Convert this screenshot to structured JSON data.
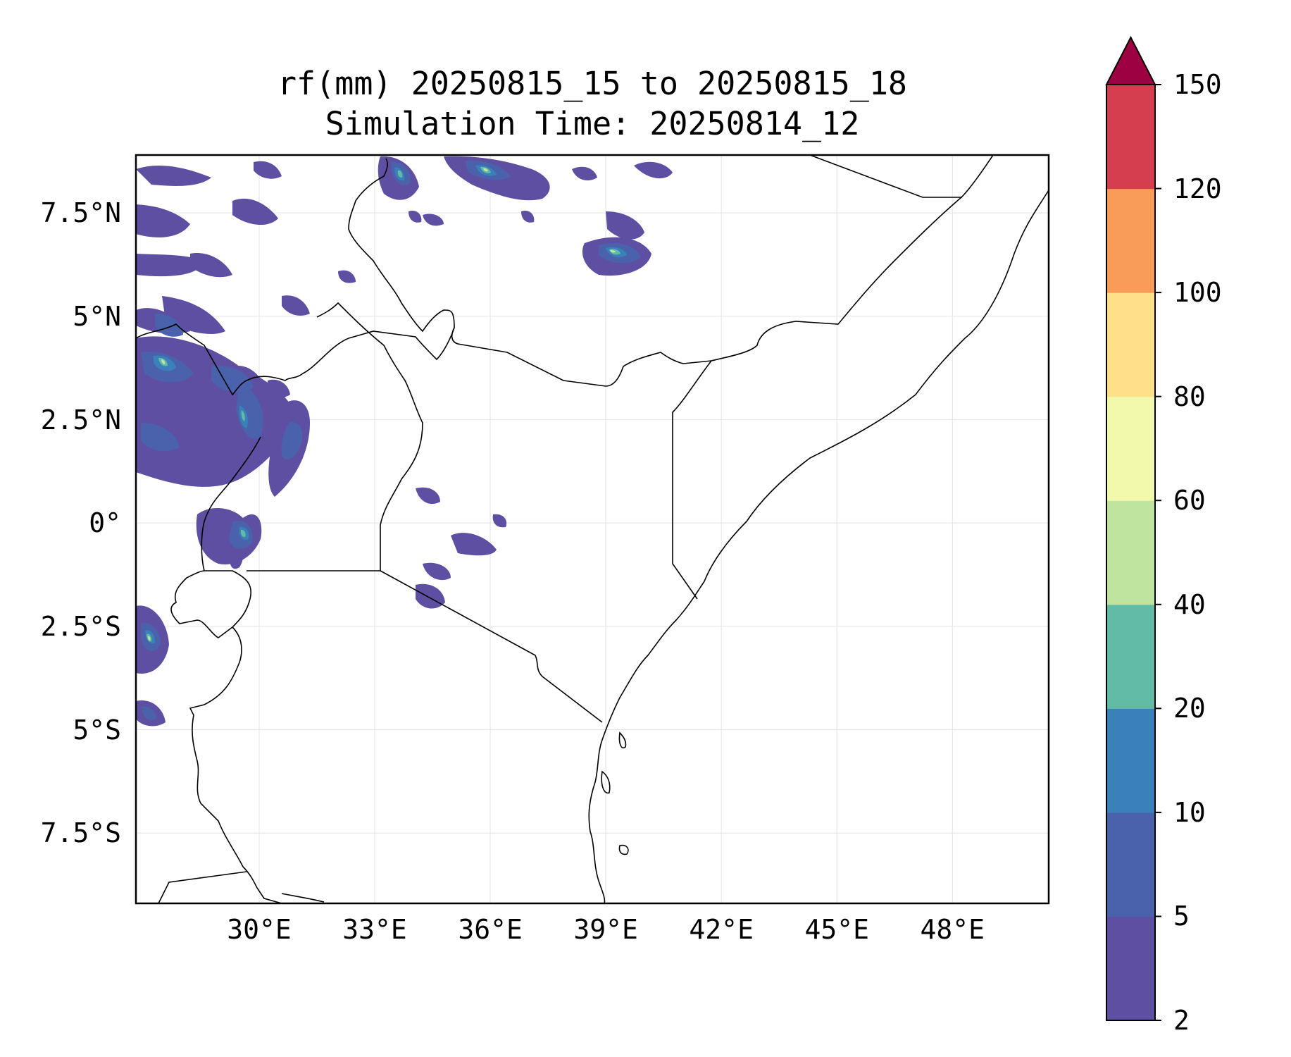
{
  "title": {
    "line1": "rf(mm) 20250815_15 to 20250815_18",
    "line2": "Simulation Time: 20250814_12"
  },
  "map": {
    "lon_range": [
      26.8,
      50.5
    ],
    "lat_range": [
      -9.2,
      8.9
    ],
    "lat_ticks": [
      {
        "value": 7.5,
        "label": "7.5°N"
      },
      {
        "value": 5,
        "label": "5°N"
      },
      {
        "value": 2.5,
        "label": "2.5°N"
      },
      {
        "value": 0,
        "label": "0°"
      },
      {
        "value": -2.5,
        "label": "2.5°S"
      },
      {
        "value": -5,
        "label": "5°S"
      },
      {
        "value": -7.5,
        "label": "7.5°S"
      }
    ],
    "lon_ticks": [
      {
        "value": 30,
        "label": "30°E"
      },
      {
        "value": 33,
        "label": "33°E"
      },
      {
        "value": 36,
        "label": "36°E"
      },
      {
        "value": 39,
        "label": "39°E"
      },
      {
        "value": 42,
        "label": "42°E"
      },
      {
        "value": 45,
        "label": "45°E"
      },
      {
        "value": 48,
        "label": "48°E"
      }
    ],
    "grid": true
  },
  "colorbar": {
    "extend": "max",
    "levels": [
      {
        "label": "2",
        "color": "#5e4fa2"
      },
      {
        "label": "5",
        "color": "#4a62ac"
      },
      {
        "label": "10",
        "color": "#3a80b9"
      },
      {
        "label": "20",
        "color": "#62bba7"
      },
      {
        "label": "40",
        "color": "#bee4a0"
      },
      {
        "label": "60",
        "color": "#f2f8ac"
      },
      {
        "label": "80",
        "color": "#fee08b"
      },
      {
        "label": "100",
        "color": "#f99c5a"
      },
      {
        "label": "120",
        "color": "#d53e4f"
      },
      {
        "label": "150",
        "color": "#9e0142"
      }
    ]
  }
}
